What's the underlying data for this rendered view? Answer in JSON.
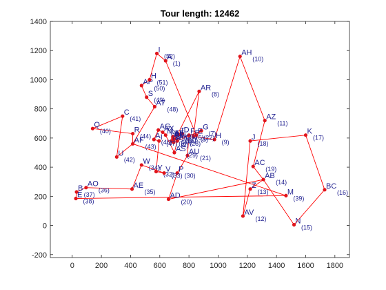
{
  "chart_data": {
    "type": "scatter",
    "title": "Tour length: 12462",
    "xlim": [
      -150,
      1900
    ],
    "ylim": [
      -220,
      1400
    ],
    "xticks": [
      0,
      200,
      400,
      600,
      800,
      1000,
      1200,
      1400,
      1600,
      1800
    ],
    "yticks": [
      -200,
      0,
      200,
      400,
      600,
      800,
      1000,
      1200,
      1400
    ],
    "grid": false,
    "marker_color": "#e0141b",
    "line_color": "#ff0000",
    "label_color": "#1f1f8f",
    "points": [
      {
        "name": "A",
        "idx": 1,
        "x": 640,
        "y": 1130
      },
      {
        "name": "B",
        "idx": 2,
        "x": 695,
        "y": 570
      },
      {
        "name": "C",
        "idx": 3,
        "x": 680,
        "y": 580
      },
      {
        "name": "D",
        "idx": 4,
        "x": 755,
        "y": 630
      },
      {
        "name": "E",
        "idx": 5,
        "x": 830,
        "y": 610
      },
      {
        "name": "F",
        "idx": 6,
        "x": 800,
        "y": 620
      },
      {
        "name": "G",
        "idx": 7,
        "x": 885,
        "y": 650
      },
      {
        "name": "AR",
        "idx": 8,
        "x": 870,
        "y": 920
      },
      {
        "name": "H",
        "idx": 9,
        "x": 975,
        "y": 590
      },
      {
        "name": "AH",
        "idx": 10,
        "x": 1150,
        "y": 1160
      },
      {
        "name": "AZ",
        "idx": 11,
        "x": 1320,
        "y": 720
      },
      {
        "name": "AV",
        "idx": 12,
        "x": 1170,
        "y": 65
      },
      {
        "name": "Z",
        "idx": 13,
        "x": 1220,
        "y": 250
      },
      {
        "name": "AB",
        "idx": 14,
        "x": 1310,
        "y": 315
      },
      {
        "name": "N",
        "idx": 15,
        "x": 1520,
        "y": 5
      },
      {
        "name": "BC",
        "idx": 16,
        "x": 1730,
        "y": 245
      },
      {
        "name": "K",
        "idx": 17,
        "x": 1600,
        "y": 620
      },
      {
        "name": "J",
        "idx": 18,
        "x": 1220,
        "y": 580
      },
      {
        "name": "AC",
        "idx": 19,
        "x": 1240,
        "y": 405
      },
      {
        "name": "AD",
        "idx": 20,
        "x": 660,
        "y": 180
      },
      {
        "name": "AU",
        "idx": 21,
        "x": 790,
        "y": 480
      },
      {
        "name": "E",
        "idx": 22,
        "x": 850,
        "y": 620
      },
      {
        "name": "F",
        "idx": 23,
        "x": 695,
        "y": 590
      },
      {
        "name": "AX",
        "idx": 24,
        "x": 620,
        "y": 640
      },
      {
        "name": "T",
        "idx": 25,
        "x": 730,
        "y": 625
      },
      {
        "name": "AB",
        "idx": 26,
        "x": 690,
        "y": 600
      },
      {
        "name": "AF",
        "idx": 27,
        "x": 690,
        "y": 610
      },
      {
        "name": "AK",
        "idx": 28,
        "x": 720,
        "y": 580
      },
      {
        "name": "AS",
        "idx": 29,
        "x": 700,
        "y": 500
      },
      {
        "name": "P",
        "idx": 30,
        "x": 720,
        "y": 360
      },
      {
        "name": "M",
        "idx": 31,
        "x": 640,
        "y": 620
      },
      {
        "name": "Y",
        "idx": 32,
        "x": 575,
        "y": 370
      },
      {
        "name": "V",
        "idx": 33,
        "x": 630,
        "y": 360
      },
      {
        "name": "W",
        "idx": 34,
        "x": 475,
        "y": 415
      },
      {
        "name": "AE",
        "idx": 35,
        "x": 410,
        "y": 250
      },
      {
        "name": "AO",
        "idx": 36,
        "x": 95,
        "y": 260
      },
      {
        "name": "B",
        "idx": 37,
        "x": 30,
        "y": 230
      },
      {
        "name": "E",
        "idx": 38,
        "x": 25,
        "y": 185
      },
      {
        "name": "M",
        "idx": 39,
        "x": 1465,
        "y": 205
      },
      {
        "name": "Q",
        "idx": 40,
        "x": 140,
        "y": 665
      },
      {
        "name": "C",
        "idx": 41,
        "x": 345,
        "y": 750
      },
      {
        "name": "U",
        "idx": 42,
        "x": 305,
        "y": 470
      },
      {
        "name": "AF",
        "idx": 43,
        "x": 415,
        "y": 560
      },
      {
        "name": "R",
        "idx": 44,
        "x": 415,
        "y": 630
      },
      {
        "name": "AG",
        "idx": 45,
        "x": 590,
        "y": 655
      },
      {
        "name": "A",
        "idx": 46,
        "x": 560,
        "y": 590
      },
      {
        "name": "I",
        "idx": 47,
        "x": 595,
        "y": 580
      },
      {
        "name": "AT",
        "idx": 48,
        "x": 565,
        "y": 815
      },
      {
        "name": "S",
        "idx": 49,
        "x": 510,
        "y": 880
      },
      {
        "name": "AP",
        "idx": 50,
        "x": 475,
        "y": 960
      },
      {
        "name": "H",
        "idx": 51,
        "x": 530,
        "y": 1000
      },
      {
        "name": "I",
        "idx": 52,
        "x": 580,
        "y": 1180
      }
    ],
    "tour": [
      52,
      1,
      22,
      7,
      2,
      8,
      5,
      9,
      10,
      11,
      19,
      14,
      13,
      12,
      18,
      17,
      16,
      15,
      14,
      20,
      30,
      21,
      6,
      3,
      4,
      23,
      25,
      26,
      27,
      28,
      29,
      31,
      24,
      45,
      46,
      47,
      32,
      33,
      34,
      35,
      36,
      37,
      38,
      39,
      43,
      42,
      41,
      40,
      44,
      43,
      48,
      49,
      50,
      51,
      52
    ]
  }
}
